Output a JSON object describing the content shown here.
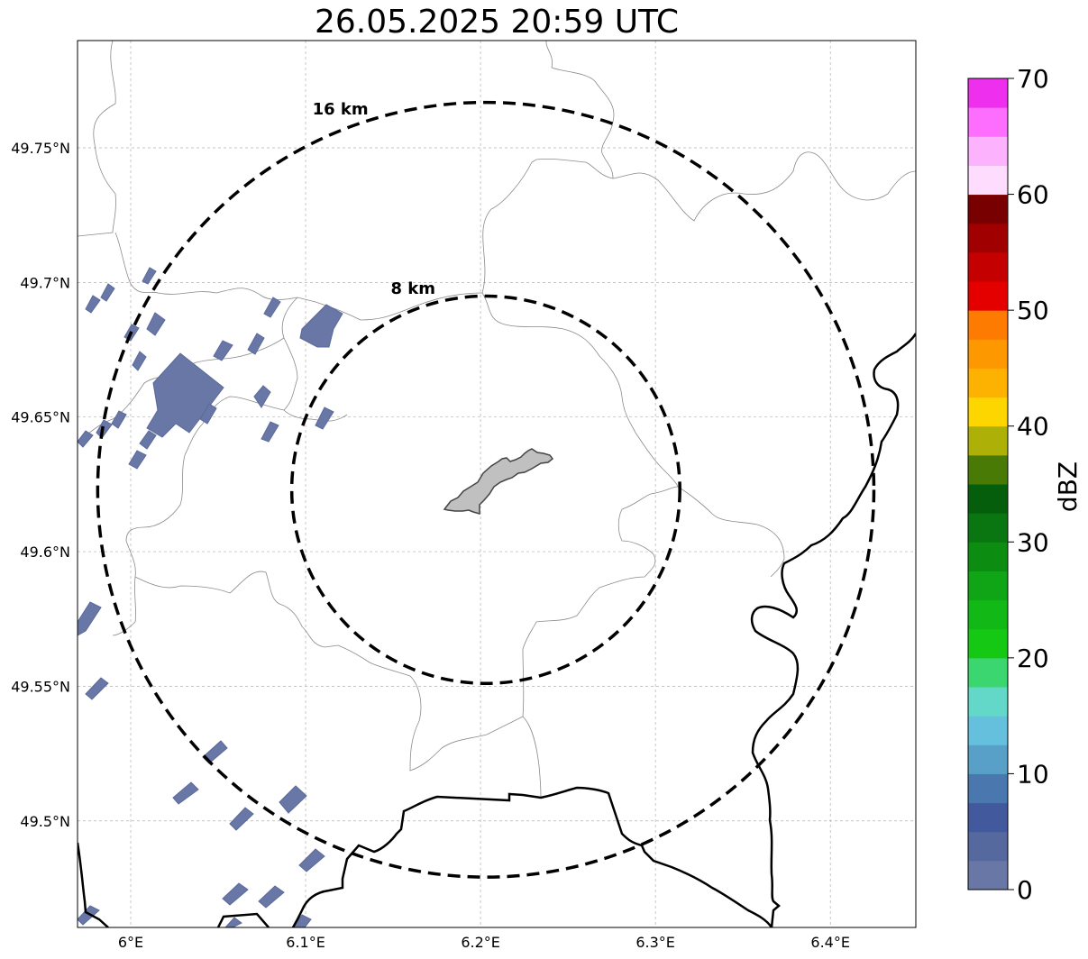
{
  "title": "26.05.2025 20:59 UTC",
  "map": {
    "lon_range": [
      5.97,
      6.45
    ],
    "lat_range": [
      49.46,
      49.79
    ],
    "lon_ticks": [
      {
        "value": 6.0,
        "label": "6°E"
      },
      {
        "value": 6.1,
        "label": "6.1°E"
      },
      {
        "value": 6.2,
        "label": "6.2°E"
      },
      {
        "value": 6.3,
        "label": "6.3°E"
      },
      {
        "value": 6.4,
        "label": "6.4°E"
      }
    ],
    "lat_ticks": [
      {
        "value": 49.5,
        "label": "49.5°N"
      },
      {
        "value": 49.55,
        "label": "49.55°N"
      },
      {
        "value": 49.6,
        "label": "49.6°N"
      },
      {
        "value": 49.65,
        "label": "49.65°N"
      },
      {
        "value": 49.7,
        "label": "49.7°N"
      },
      {
        "value": 49.75,
        "label": "49.75°N"
      }
    ],
    "center": {
      "lon": 6.203,
      "lat": 49.623
    },
    "rings": [
      {
        "radius_km": 8,
        "label": "8 km"
      },
      {
        "radius_km": 16,
        "label": "16 km"
      }
    ],
    "grid": true
  },
  "colorbar": {
    "title": "dBZ",
    "min": 0,
    "max": 70,
    "ticks": [
      {
        "value": 0,
        "label": "0"
      },
      {
        "value": 10,
        "label": "10"
      },
      {
        "value": 20,
        "label": "20"
      },
      {
        "value": 30,
        "label": "30"
      },
      {
        "value": 40,
        "label": "40"
      },
      {
        "value": 50,
        "label": "50"
      },
      {
        "value": 60,
        "label": "60"
      },
      {
        "value": 70,
        "label": "70"
      }
    ],
    "colors": [
      "#6877a6",
      "#56699e",
      "#43599e",
      "#4a78ae",
      "#58a0c8",
      "#64c0dc",
      "#64d8c8",
      "#3cd670",
      "#14c814",
      "#11b816",
      "#10a516",
      "#0c8c10",
      "#0a7612",
      "#055e0c",
      "#497a05",
      "#adb006",
      "#fdd600",
      "#fdb100",
      "#fd9800",
      "#fd7b00",
      "#e50000",
      "#c40000",
      "#a00000",
      "#780000",
      "#fedcfe",
      "#fdb2fe",
      "#fd6efe",
      "#ee30ee"
    ]
  },
  "legend_swatch_color": "#c0c0c0",
  "echo_color": "#6877a6"
}
